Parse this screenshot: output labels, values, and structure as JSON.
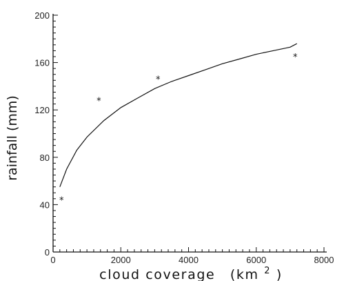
{
  "chart_data": {
    "type": "scatter",
    "title": "",
    "xlabel_main": "cloud coverage",
    "xlabel_unit_open": "(km",
    "xlabel_unit_sup": "2",
    "xlabel_unit_close": ")",
    "ylabel": "rainfall (mm)",
    "xlim": [
      0,
      8000
    ],
    "ylim": [
      0,
      200
    ],
    "x_ticks": [
      "0",
      "2000",
      "4000",
      "6000",
      "8000"
    ],
    "y_ticks": [
      "0",
      "40",
      "80",
      "120",
      "160",
      "200"
    ],
    "grid": false,
    "series": [
      {
        "type": "scatter",
        "marker": "*",
        "x": [
          250,
          1350,
          3100,
          7150
        ],
        "y": [
          44,
          128,
          146,
          165
        ]
      },
      {
        "type": "line",
        "x": [
          200,
          400,
          700,
          1000,
          1500,
          2000,
          2500,
          3000,
          3500,
          4000,
          4500,
          5000,
          5500,
          6000,
          6500,
          7000,
          7200
        ],
        "y": [
          55,
          70,
          86,
          97,
          111,
          122,
          130,
          138,
          144,
          149,
          154,
          159,
          163,
          167,
          170,
          173,
          176
        ]
      }
    ]
  }
}
